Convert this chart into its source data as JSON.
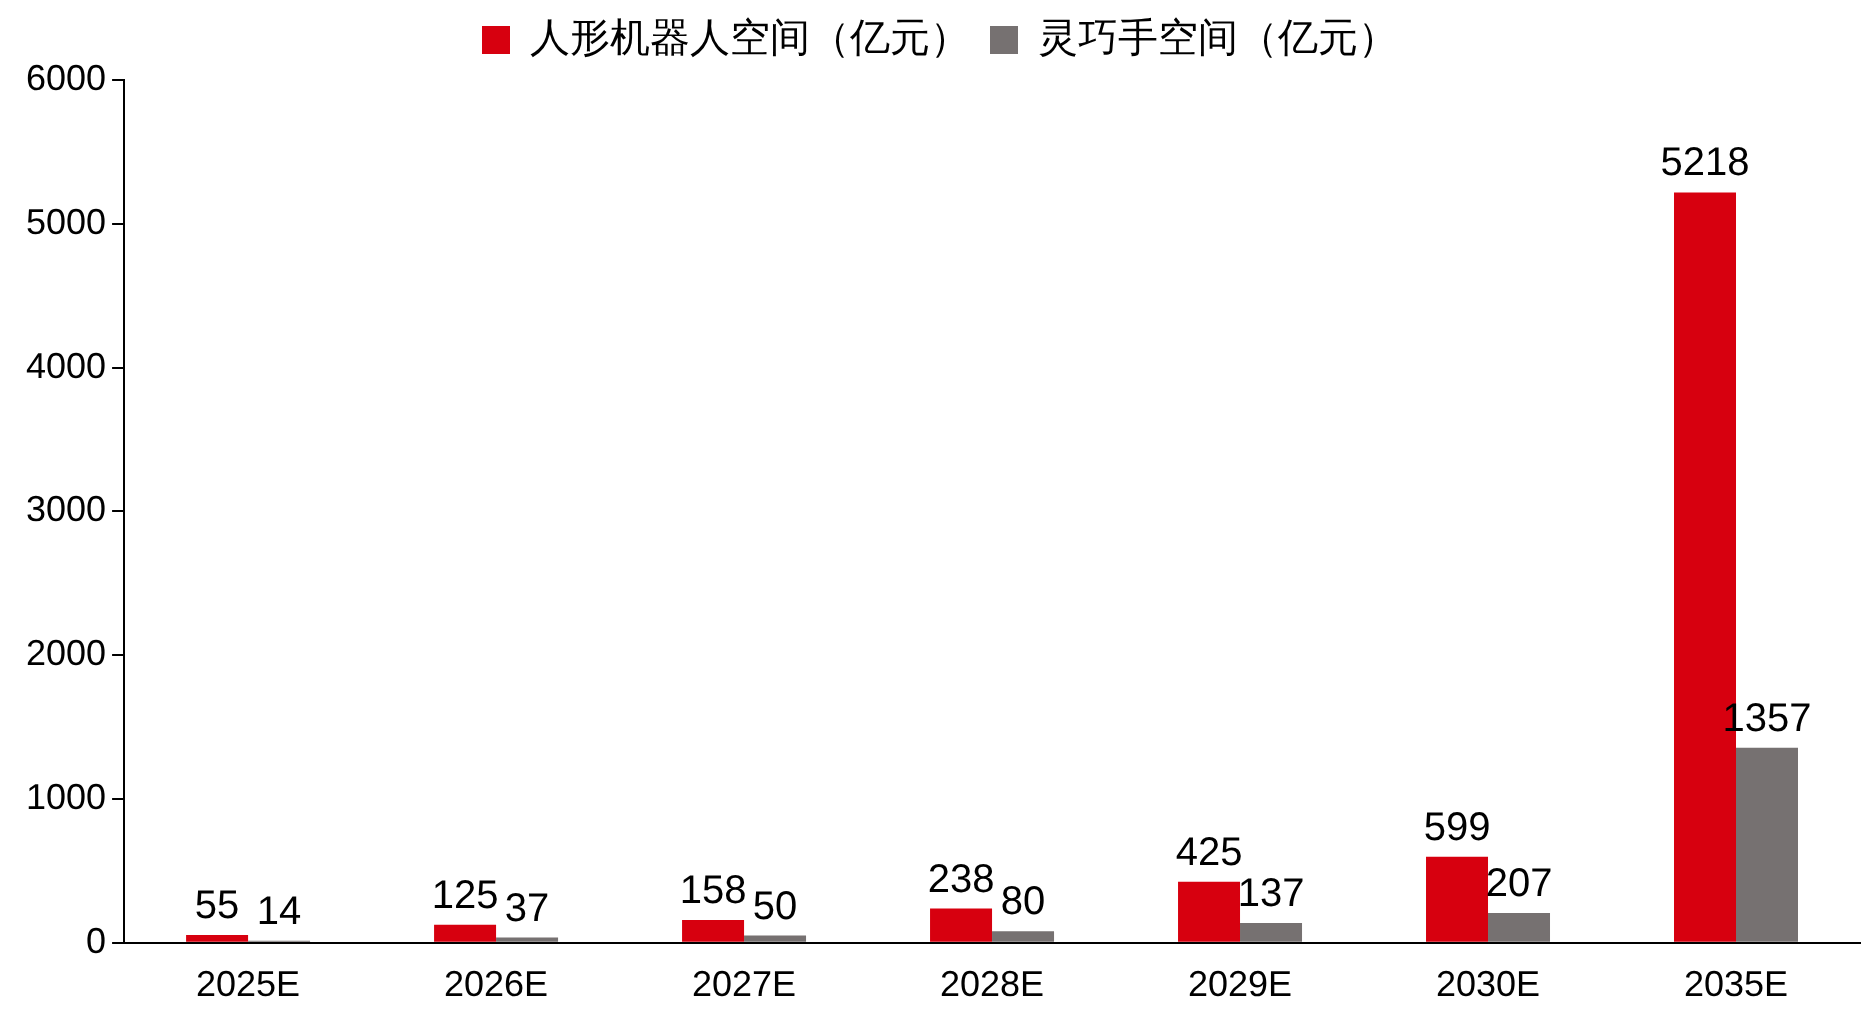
{
  "chart_data": {
    "type": "bar",
    "categories": [
      "2025E",
      "2026E",
      "2027E",
      "2028E",
      "2029E",
      "2030E",
      "2035E"
    ],
    "series": [
      {
        "name": "人形机器人空间（亿元）",
        "color": "#d7000f",
        "values": [
          55,
          125,
          158,
          238,
          425,
          599,
          5218
        ]
      },
      {
        "name": "灵巧手空间（亿元）",
        "color": "#767171",
        "values": [
          14,
          37,
          50,
          80,
          137,
          207,
          1357
        ]
      }
    ],
    "ylim": [
      0,
      6000
    ],
    "yticks": [
      0,
      1000,
      2000,
      3000,
      4000,
      5000,
      6000
    ],
    "grid": false,
    "legend": "top",
    "data_labels": true
  }
}
